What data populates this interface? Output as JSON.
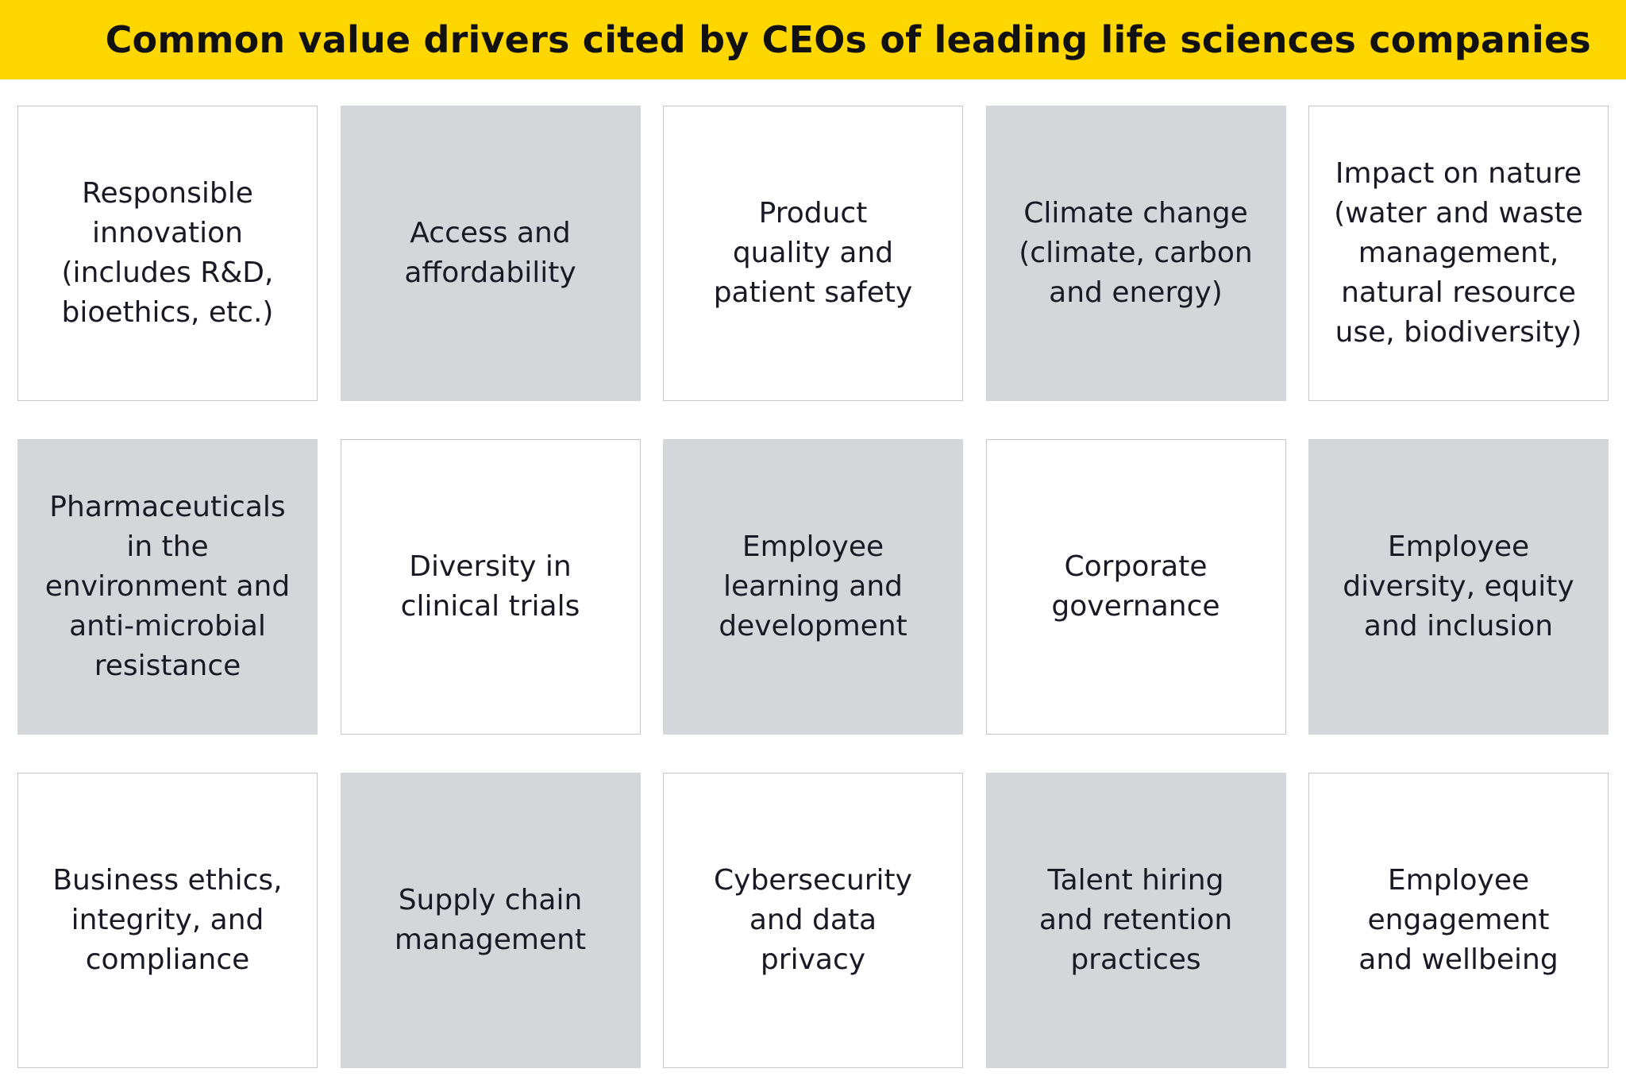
{
  "title": "Common value drivers cited by CEOs of leading life sciences companies",
  "colors": {
    "banner": "#ffd700",
    "grey_cell": "#d4d7da",
    "white_cell": "#ffffff",
    "cell_border": "#c4c7ca",
    "text": "#1a1a24"
  },
  "drivers": [
    {
      "label": "Responsible\ninnovation\n(includes R&D,\nbioethics, etc.)",
      "shade": "white"
    },
    {
      "label": "Access and\naffordability",
      "shade": "grey"
    },
    {
      "label": "Product\nquality and\npatient safety",
      "shade": "white"
    },
    {
      "label": "Climate change\n(climate, carbon\nand energy)",
      "shade": "grey"
    },
    {
      "label": "Impact on nature\n(water and waste\nmanagement,\nnatural resource\nuse, biodiversity)",
      "shade": "white"
    },
    {
      "label": "Pharmaceuticals\nin the\nenvironment and\nanti-microbial\nresistance",
      "shade": "grey"
    },
    {
      "label": "Diversity in\nclinical trials",
      "shade": "white"
    },
    {
      "label": "Employee\nlearning and\ndevelopment",
      "shade": "grey"
    },
    {
      "label": "Corporate\ngovernance",
      "shade": "white"
    },
    {
      "label": "Employee\ndiversity, equity\nand inclusion",
      "shade": "grey"
    },
    {
      "label": "Business ethics,\nintegrity, and\ncompliance",
      "shade": "white"
    },
    {
      "label": "Supply chain\nmanagement",
      "shade": "grey"
    },
    {
      "label": "Cybersecurity\nand data\nprivacy",
      "shade": "white"
    },
    {
      "label": "Talent hiring\nand retention\npractices",
      "shade": "grey"
    },
    {
      "label": "Employee\nengagement\nand wellbeing",
      "shade": "white"
    }
  ]
}
